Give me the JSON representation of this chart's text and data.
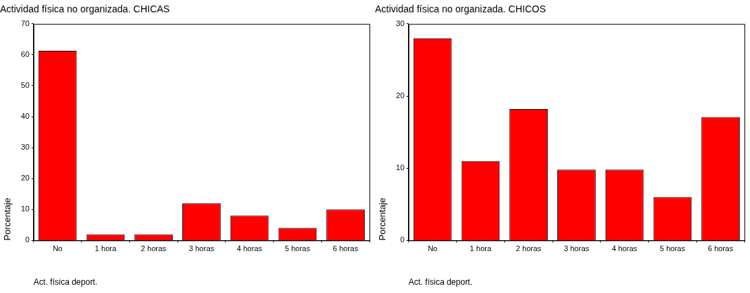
{
  "chart_data": [
    {
      "type": "bar",
      "title": "Actividad física no organizada. CHICAS",
      "xlabel": "Act. física deport.",
      "ylabel": "Porcentaje",
      "categories": [
        "No",
        "1 hora",
        "2 horas",
        "3 horas",
        "4 horas",
        "5 horas",
        "6 horas"
      ],
      "values": [
        61.3,
        2,
        2,
        12,
        8,
        4,
        10
      ],
      "color": "#ff0000",
      "ylim": [
        0,
        70
      ],
      "yticks": [
        0,
        10,
        20,
        30,
        40,
        50,
        60,
        70
      ]
    },
    {
      "type": "bar",
      "title": "Actividad física no organizada. CHICOS",
      "xlabel": "Act. física deport.",
      "ylabel": "Porcentaje",
      "categories": [
        "No",
        "1 hora",
        "2 horas",
        "3 horas",
        "4 horas",
        "5 horas",
        "6 horas"
      ],
      "values": [
        28,
        11,
        18.2,
        9.8,
        9.8,
        6,
        17.1
      ],
      "color": "#ff0000",
      "ylim": [
        0,
        30
      ],
      "yticks": [
        0,
        10,
        20,
        30
      ]
    }
  ]
}
